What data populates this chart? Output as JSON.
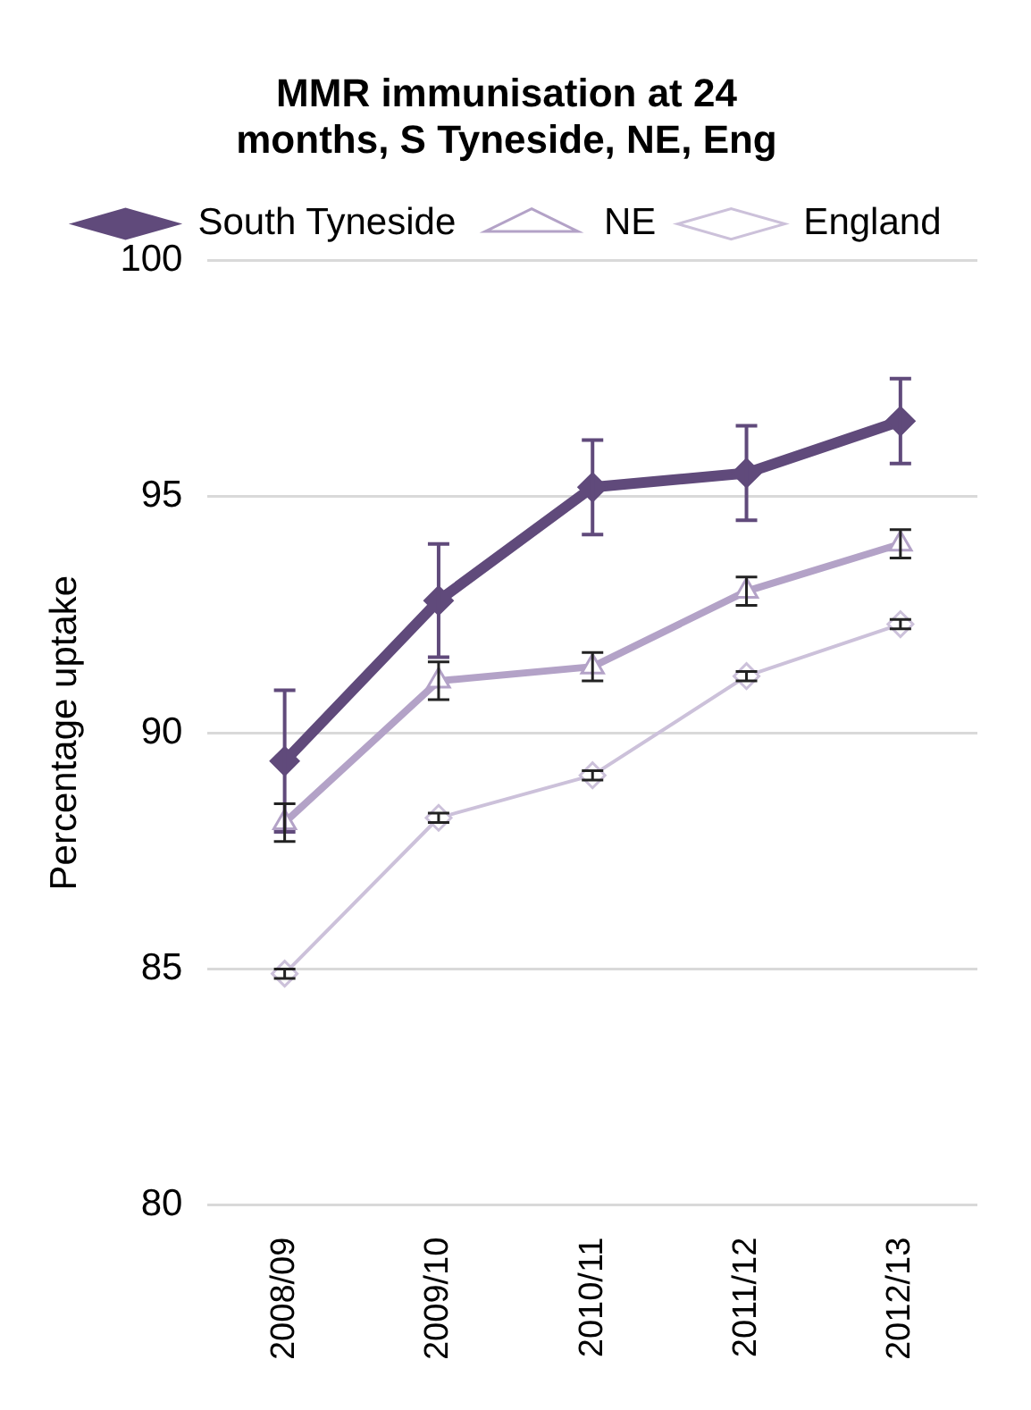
{
  "chart_data": {
    "type": "line",
    "title": [
      "MMR immunisation at 24",
      "months, S Tyneside, NE, Eng"
    ],
    "ylabel": "Percentage uptake",
    "categories": [
      "2008/09",
      "2009/10",
      "2010/11",
      "2011/12",
      "2012/13"
    ],
    "series": [
      {
        "name": "South Tyneside",
        "color": "#604a7b",
        "marker": "diamond",
        "values": [
          89.4,
          92.8,
          95.2,
          95.5,
          96.6
        ],
        "errors": [
          1.5,
          1.2,
          1.0,
          1.0,
          0.9
        ]
      },
      {
        "name": "NE",
        "color": "#b3a2c7",
        "marker": "triangle",
        "values": [
          88.1,
          91.1,
          91.4,
          93.0,
          94.0
        ],
        "errors": [
          0.4,
          0.4,
          0.3,
          0.3,
          0.3
        ]
      },
      {
        "name": "England",
        "color": "#ccc1da",
        "marker": "diamond",
        "values": [
          84.9,
          88.2,
          89.1,
          91.2,
          92.3
        ],
        "errors": [
          0.1,
          0.1,
          0.1,
          0.1,
          0.1
        ]
      }
    ],
    "ylim": [
      80,
      100
    ],
    "yticks": [
      80,
      85,
      90,
      95,
      100
    ],
    "grid": "y",
    "legend": "top",
    "line_style": "solid"
  }
}
